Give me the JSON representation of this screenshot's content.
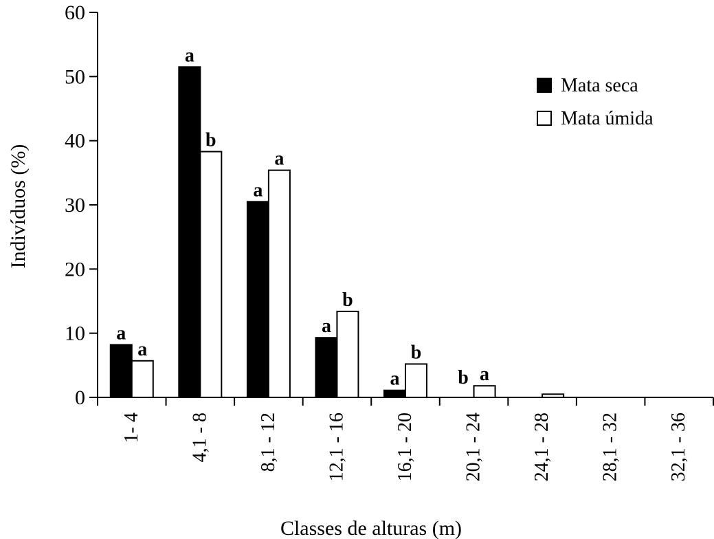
{
  "chart_data": {
    "type": "bar",
    "xlabel": "Classes de alturas (m)",
    "ylabel": "Indivíduos (%)",
    "ylim": [
      0,
      60
    ],
    "yticks": [
      0,
      10,
      20,
      30,
      40,
      50,
      60
    ],
    "categories": [
      "1- 4",
      "4,1 - 8",
      "8,1 - 12",
      "12,1 - 16",
      "16,1 - 20",
      "20,1 - 24",
      "24,1 - 28",
      "28,1 - 32",
      "32,1 - 36"
    ],
    "series": [
      {
        "name": "Mata seca",
        "fill": "#000000",
        "values": [
          8.2,
          51.5,
          30.5,
          9.3,
          1.1,
          0,
          0,
          0,
          0
        ],
        "significance": [
          "a",
          "a",
          "a",
          "a",
          "a",
          "b",
          "",
          "",
          ""
        ]
      },
      {
        "name": "Mata úmida",
        "fill": "#ffffff",
        "values": [
          5.7,
          38.3,
          35.4,
          13.4,
          5.2,
          1.8,
          0.5,
          0,
          0
        ],
        "significance": [
          "a",
          "b",
          "a",
          "b",
          "b",
          "a",
          "",
          "",
          ""
        ]
      }
    ],
    "legend_position": "top-right",
    "grid": false
  }
}
